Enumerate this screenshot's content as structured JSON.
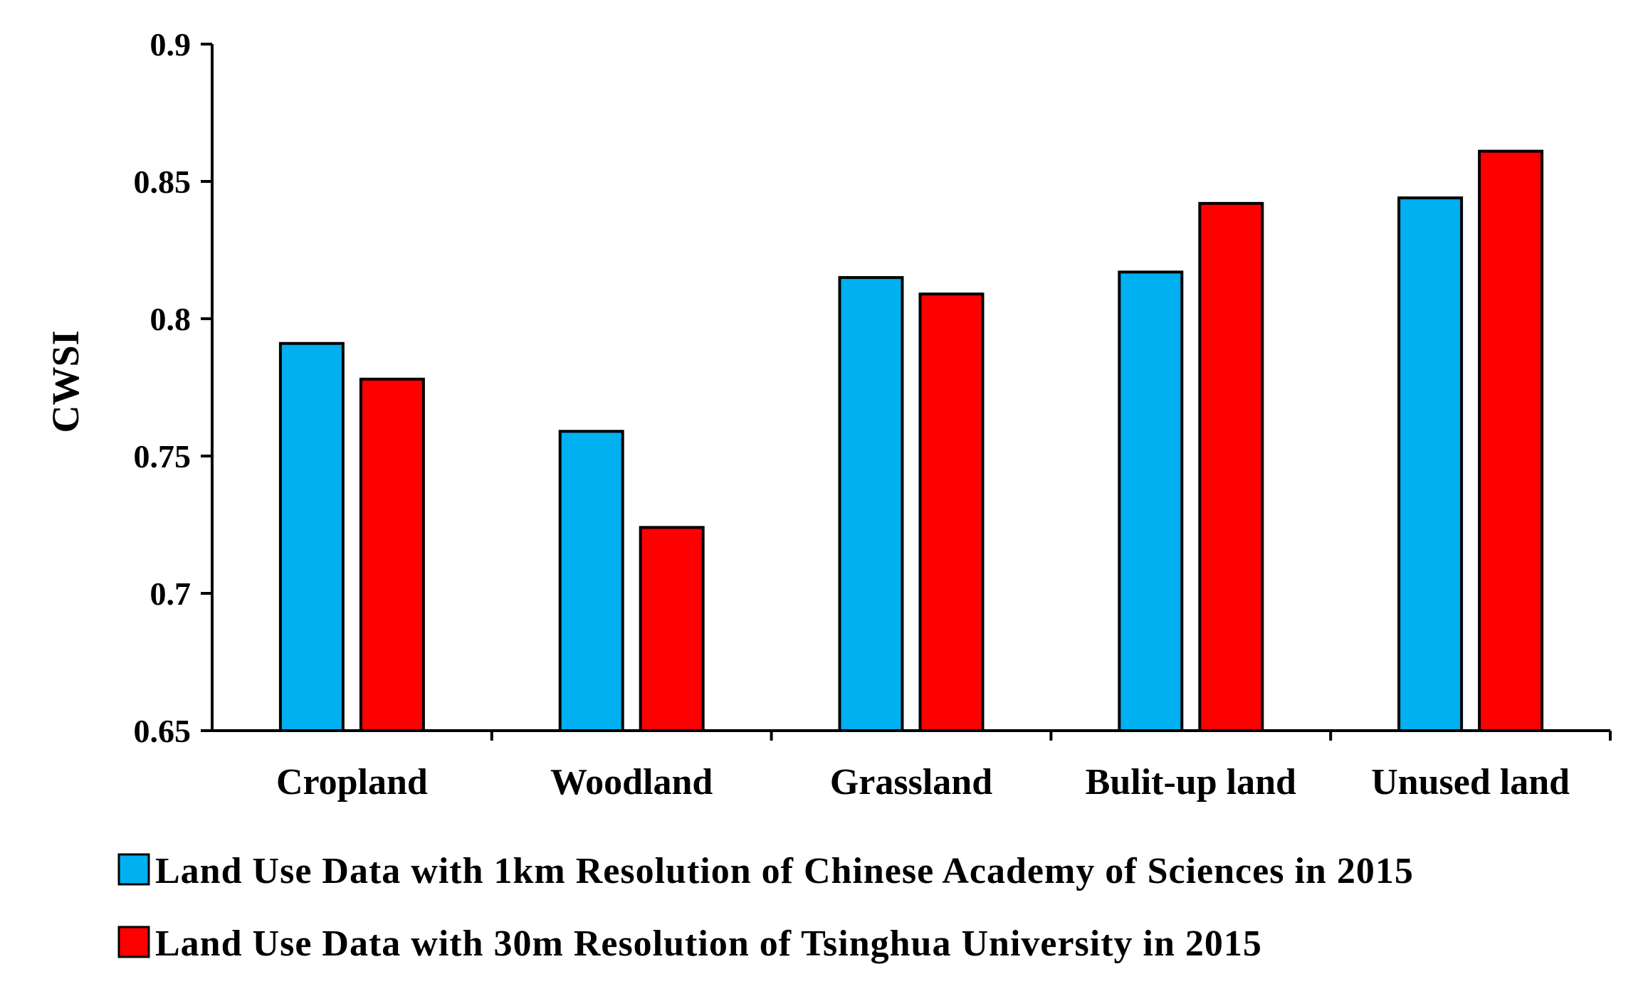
{
  "chart_data": {
    "type": "bar",
    "title": "",
    "xlabel": "",
    "ylabel": "CWSI",
    "ylim": [
      0.65,
      0.9
    ],
    "yticks": [
      "0.65",
      "0.7",
      "0.75",
      "0.8",
      "0.85",
      "0.9"
    ],
    "grid": false,
    "legend_position": "bottom",
    "categories": [
      "Cropland",
      "Woodland",
      "Grassland",
      "Bulit-up land",
      "Unused land"
    ],
    "series": [
      {
        "name": "Land Use Data with 1km Resolution of Chinese Academy of Sciences in 2015",
        "color": "#00B0F0",
        "values": [
          0.791,
          0.759,
          0.815,
          0.817,
          0.844
        ]
      },
      {
        "name": "Land Use Data with 30m Resolution of Tsinghua University in 2015",
        "color": "#FF0000",
        "values": [
          0.778,
          0.724,
          0.809,
          0.842,
          0.861
        ]
      }
    ]
  }
}
